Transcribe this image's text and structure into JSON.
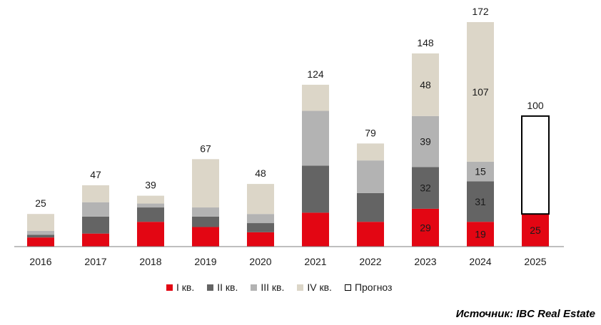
{
  "chart_data": {
    "type": "bar",
    "stacked": true,
    "categories": [
      "2016",
      "2017",
      "2018",
      "2019",
      "2020",
      "2021",
      "2022",
      "2023",
      "2024",
      "2025"
    ],
    "totals": [
      "25",
      "47",
      "39",
      "67",
      "48",
      "124",
      "79",
      "148",
      "172",
      "100"
    ],
    "series": [
      {
        "name": "I кв.",
        "color": "#e30613",
        "values": [
          7,
          10,
          19,
          15,
          11,
          26,
          19,
          29,
          19,
          25
        ],
        "labels": [
          "",
          "",
          "",
          "",
          "",
          "",
          "",
          "29",
          "19",
          "25"
        ]
      },
      {
        "name": "II кв.",
        "color": "#646464",
        "values": [
          2,
          13,
          11,
          8,
          7,
          36,
          22,
          32,
          31,
          0
        ],
        "labels": [
          "",
          "",
          "",
          "",
          "",
          "",
          "",
          "32",
          "31",
          ""
        ]
      },
      {
        "name": "III кв.",
        "color": "#b3b3b3",
        "values": [
          3,
          11,
          3,
          7,
          7,
          42,
          25,
          39,
          15,
          0
        ],
        "labels": [
          "",
          "",
          "",
          "",
          "",
          "",
          "",
          "39",
          "15",
          ""
        ]
      },
      {
        "name": "IV кв.",
        "color": "#dcd6c8",
        "values": [
          13,
          13,
          6,
          37,
          23,
          20,
          13,
          48,
          107,
          0
        ],
        "labels": [
          "",
          "",
          "",
          "",
          "",
          "",
          "",
          "48",
          "107",
          ""
        ]
      },
      {
        "name": "Прогноз",
        "color": "#ffffff",
        "outline": "#000000",
        "values": [
          0,
          0,
          0,
          0,
          0,
          0,
          0,
          0,
          0,
          75
        ],
        "labels": [
          "",
          "",
          "",
          "",
          "",
          "",
          "",
          "",
          "",
          ""
        ]
      }
    ],
    "ylim": [
      0,
      172
    ],
    "grid": false,
    "legend_position": "bottom"
  },
  "legend": {
    "items": [
      {
        "label": "I кв.",
        "color": "#e30613"
      },
      {
        "label": "II кв.",
        "color": "#646464"
      },
      {
        "label": "III кв.",
        "color": "#b3b3b3"
      },
      {
        "label": "IV кв.",
        "color": "#dcd6c8"
      },
      {
        "label": "Прогноз",
        "color": "#ffffff",
        "outline": "#000000"
      }
    ]
  },
  "source": "Источник: IBC Real Estate"
}
